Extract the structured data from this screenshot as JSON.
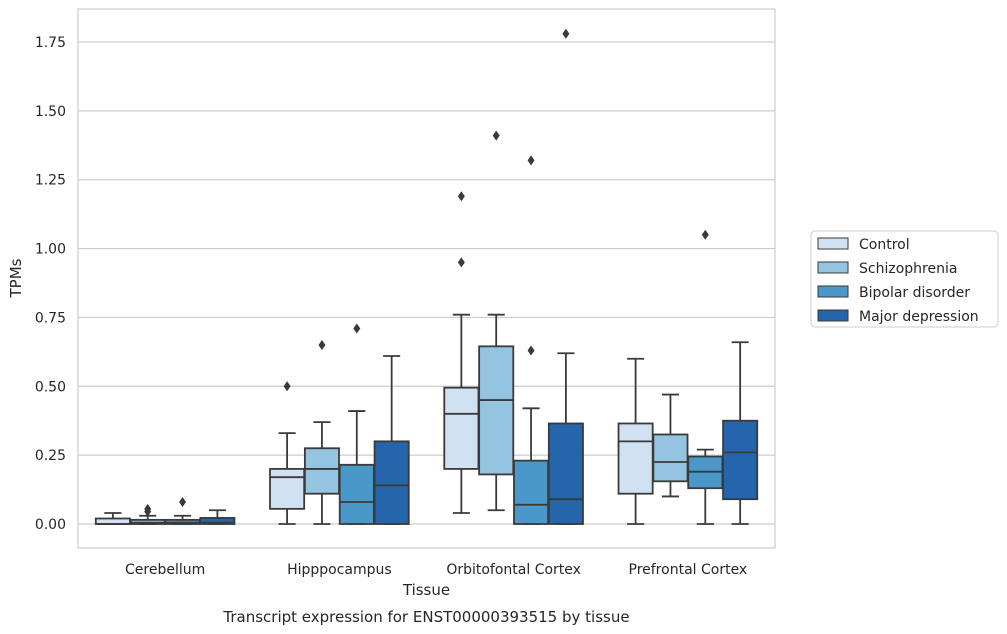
{
  "chart_data": {
    "type": "box",
    "xlabel": "Tissue",
    "ylabel": "TPMs",
    "caption": "Transcript expression for ENST00000393515 by tissue",
    "ylim": [
      -0.085,
      1.87
    ],
    "yticks": [
      "0.00",
      "0.25",
      "0.50",
      "0.75",
      "1.00",
      "1.25",
      "1.50",
      "1.75"
    ],
    "ytick_values": [
      0,
      0.25,
      0.5,
      0.75,
      1.0,
      1.25,
      1.5,
      1.75
    ],
    "grid": "horizontal",
    "legend_position": "right",
    "categories": [
      "Cerebellum",
      "Hipppocampus",
      "Orbitofontal Cortex",
      "Prefrontal Cortex"
    ],
    "series": [
      {
        "name": "Control",
        "color": "#d0e1f2",
        "boxes": [
          {
            "whislo": 0.0,
            "q1": 0.0,
            "med": 0.0,
            "q3": 0.02,
            "whishi": 0.04,
            "fliers": []
          },
          {
            "whislo": 0.0,
            "q1": 0.055,
            "med": 0.17,
            "q3": 0.2,
            "whishi": 0.33,
            "fliers": [
              0.5
            ]
          },
          {
            "whislo": 0.04,
            "q1": 0.2,
            "med": 0.4,
            "q3": 0.495,
            "whishi": 0.76,
            "fliers": [
              0.95,
              1.19
            ]
          },
          {
            "whislo": 0.0,
            "q1": 0.11,
            "med": 0.3,
            "q3": 0.365,
            "whishi": 0.6,
            "fliers": []
          }
        ]
      },
      {
        "name": "Schizophrenia",
        "color": "#94c4df",
        "boxes": [
          {
            "whislo": 0.0,
            "q1": 0.0,
            "med": 0.005,
            "q3": 0.015,
            "whishi": 0.03,
            "fliers": [
              0.045,
              0.055
            ]
          },
          {
            "whislo": 0.0,
            "q1": 0.11,
            "med": 0.2,
            "q3": 0.275,
            "whishi": 0.37,
            "fliers": [
              0.65
            ]
          },
          {
            "whislo": 0.05,
            "q1": 0.18,
            "med": 0.45,
            "q3": 0.645,
            "whishi": 0.76,
            "fliers": [
              1.41
            ]
          },
          {
            "whislo": 0.1,
            "q1": 0.155,
            "med": 0.225,
            "q3": 0.325,
            "whishi": 0.47,
            "fliers": []
          }
        ]
      },
      {
        "name": "Bipolar disorder",
        "color": "#4a98c9",
        "boxes": [
          {
            "whislo": 0.0,
            "q1": 0.0,
            "med": 0.005,
            "q3": 0.015,
            "whishi": 0.03,
            "fliers": [
              0.08
            ]
          },
          {
            "whislo": 0.0,
            "q1": 0.0,
            "med": 0.08,
            "q3": 0.215,
            "whishi": 0.41,
            "fliers": [
              0.71
            ]
          },
          {
            "whislo": 0.0,
            "q1": 0.0,
            "med": 0.07,
            "q3": 0.23,
            "whishi": 0.42,
            "fliers": [
              0.63,
              1.32
            ]
          },
          {
            "whislo": 0.0,
            "q1": 0.13,
            "med": 0.19,
            "q3": 0.245,
            "whishi": 0.27,
            "fliers": [
              1.05
            ]
          }
        ]
      },
      {
        "name": "Major depression",
        "color": "#2565ab",
        "boxes": [
          {
            "whislo": 0.0,
            "q1": 0.0,
            "med": 0.005,
            "q3": 0.022,
            "whishi": 0.05,
            "fliers": []
          },
          {
            "whislo": 0.0,
            "q1": 0.0,
            "med": 0.14,
            "q3": 0.3,
            "whishi": 0.61,
            "fliers": []
          },
          {
            "whislo": 0.0,
            "q1": 0.0,
            "med": 0.09,
            "q3": 0.365,
            "whishi": 0.62,
            "fliers": [
              1.78
            ]
          },
          {
            "whislo": 0.0,
            "q1": 0.09,
            "med": 0.26,
            "q3": 0.375,
            "whishi": 0.66,
            "fliers": []
          }
        ]
      }
    ]
  }
}
